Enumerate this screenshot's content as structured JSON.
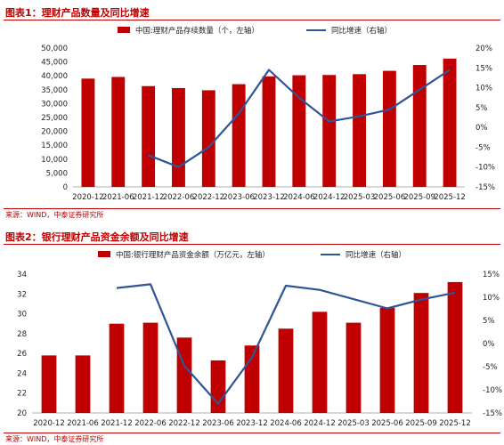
{
  "figures": [
    {
      "title": "图表1：理财产品数量及同比增速",
      "source": "来源：WIND，中泰证券研究所"
    },
    {
      "title": "图表2：银行理财产品资金余额及同比增速",
      "source": "来源：WIND，中泰证券研究所"
    }
  ],
  "colors": {
    "bar": "#c00000",
    "line": "#2e5597",
    "title": "#c00000"
  },
  "chart_data": [
    {
      "type": "bar",
      "categories": [
        "2020-12",
        "2021-06",
        "2021-12",
        "2022-06",
        "2022-12",
        "2023-06",
        "2023-12",
        "2024-06",
        "2024-12",
        "2025-03",
        "2025-06",
        "2025-09",
        "2025-12"
      ],
      "series": [
        {
          "name": "中国:理财产品存续数量（个，左轴）",
          "type": "bar",
          "axis": "left",
          "values": [
            39000,
            39600,
            36300,
            35600,
            34800,
            37000,
            39800,
            40200,
            40300,
            40600,
            41800,
            43900,
            46200
          ]
        },
        {
          "name": "同比增速（右轴）",
          "type": "line",
          "axis": "right",
          "values": [
            null,
            null,
            -7,
            -10,
            -5,
            3.5,
            14.5,
            7.5,
            1.5,
            2.8,
            4.5,
            9.5,
            14.5
          ]
        }
      ],
      "left_axis": {
        "ylim": [
          0,
          50000
        ],
        "ticks": [
          "0",
          "5,000",
          "10,000",
          "15,000",
          "20,000",
          "25,000",
          "30,000",
          "35,000",
          "40,000",
          "45,000",
          "50,000"
        ]
      },
      "right_axis": {
        "ylim": [
          -15,
          20
        ],
        "ticks": [
          "-15%",
          "-10%",
          "-5%",
          "0%",
          "5%",
          "10%",
          "15%",
          "20%"
        ]
      },
      "grid": false,
      "legend": "top"
    },
    {
      "type": "bar",
      "categories": [
        "2020-12",
        "2021-06",
        "2021-12",
        "2022-06",
        "2022-12",
        "2023-06",
        "2023-12",
        "2024-06",
        "2024-12",
        "2025-03",
        "2025-06",
        "2025-09",
        "2025-12"
      ],
      "series": [
        {
          "name": "中国:银行理财产品资金余额（万亿元，左轴）",
          "type": "bar",
          "axis": "left",
          "values": [
            25.8,
            25.8,
            29.0,
            29.1,
            27.6,
            25.3,
            26.8,
            28.5,
            30.2,
            29.1,
            30.6,
            32.1,
            33.2
          ]
        },
        {
          "name": "同比增速（右轴）",
          "type": "line",
          "axis": "right",
          "values": [
            null,
            null,
            12,
            12.8,
            -4.8,
            -13,
            -3,
            12.5,
            11.6,
            9.6,
            7.6,
            9.5,
            11
          ]
        }
      ],
      "left_axis": {
        "ylim": [
          20,
          34
        ],
        "ticks": [
          "20",
          "22",
          "24",
          "26",
          "28",
          "30",
          "32",
          "34"
        ]
      },
      "right_axis": {
        "ylim": [
          -15,
          15
        ],
        "ticks": [
          "-15%",
          "-10%",
          "-5%",
          "0%",
          "5%",
          "10%",
          "15%"
        ]
      },
      "grid": false,
      "legend": "top"
    }
  ]
}
